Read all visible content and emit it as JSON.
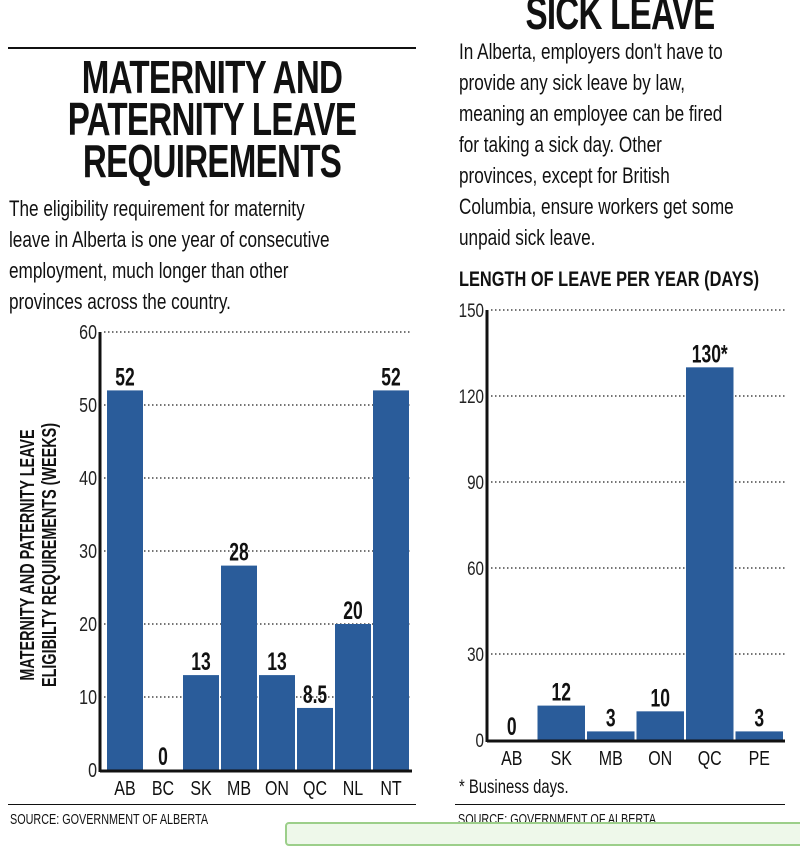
{
  "left": {
    "title": [
      "MATERNITY AND",
      "PATERNITY LEAVE",
      "REQUIREMENTS"
    ],
    "body": [
      "The eligibility requirement for maternity",
      "leave in Alberta is one year of consecutive",
      "employment, much longer than other",
      "provinces across the country."
    ],
    "source": "SOURCE: GOVERNMENT OF ALBERTA"
  },
  "right": {
    "title": "SICK LEAVE",
    "body": [
      "In Alberta, employers don't have to",
      "provide any sick leave by law,",
      "meaning an employee can be fired",
      "for taking a sick day. Other",
      "provinces, except for British",
      "Columbia, ensure workers get some",
      "unpaid sick leave."
    ],
    "chart_heading": "LENGTH OF LEAVE PER YEAR  (DAYS)",
    "footnote": "* Business days.",
    "source": "SOURCE: GOVERNMENT OF ALBERTA"
  },
  "colors": {
    "bar": "#2a5c9a",
    "text": "#111111",
    "grid": "#333333"
  },
  "chart_data": [
    {
      "type": "bar",
      "title": "",
      "xlabel": "",
      "ylabel": "MATERNITY AND PATERNITY LEAVE ELIGIBILTY REQUIREMENTS (WEEKS)",
      "ylabel_lines": [
        "MATERNITY AND  PATERNITY LEAVE",
        "ELIGIBILTY REQUIREMENTS (WEEKS)"
      ],
      "categories": [
        "AB",
        "BC",
        "SK",
        "MB",
        "ON",
        "QC",
        "NL",
        "NT"
      ],
      "values": [
        52,
        0,
        13,
        28,
        13,
        8.5,
        20,
        52
      ],
      "data_labels": [
        "52",
        "0",
        "13",
        "28",
        "13",
        "8.5",
        "20",
        "52"
      ],
      "ylim": [
        0,
        60
      ],
      "yticks": [
        0,
        10,
        20,
        30,
        40,
        50,
        60
      ],
      "grid": "dotted horizontal"
    },
    {
      "type": "bar",
      "title": "LENGTH OF LEAVE PER YEAR  (DAYS)",
      "xlabel": "",
      "ylabel": "",
      "categories": [
        "AB",
        "SK",
        "MB",
        "ON",
        "QC",
        "PE"
      ],
      "values": [
        0,
        12,
        3,
        10,
        130,
        3
      ],
      "data_labels": [
        "0",
        "12",
        "3",
        "10",
        "130*",
        "3"
      ],
      "ylim": [
        0,
        150
      ],
      "yticks": [
        0,
        30,
        60,
        90,
        120,
        150
      ],
      "grid": "dotted horizontal"
    }
  ]
}
